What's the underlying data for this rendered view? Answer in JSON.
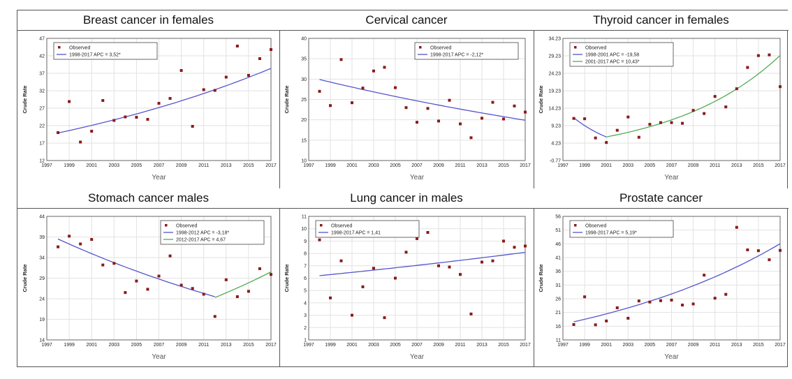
{
  "chart_data": [
    {
      "type": "scatter",
      "title": "Breast cancer in females",
      "xlabel": "Year",
      "ylabel": "Crude Rate",
      "xlim": [
        1997,
        2017
      ],
      "ylim": [
        12,
        47
      ],
      "xticks": [
        "1997",
        "1999",
        "2001",
        "2003",
        "2005",
        "2007",
        "2009",
        "2011",
        "2013",
        "2015",
        "2017"
      ],
      "yticks": [
        "12",
        "17",
        "22",
        "27",
        "32",
        "37",
        "42",
        "47"
      ],
      "legend": {
        "observed": "Observed",
        "lines": [
          "1998-2017 APC = 3,52*"
        ]
      },
      "legend_position": "top-left",
      "observed": {
        "x": [
          1998,
          1999,
          2000,
          2001,
          2002,
          2003,
          2004,
          2005,
          2006,
          2007,
          2008,
          2009,
          2010,
          2011,
          2012,
          2013,
          2014,
          2015,
          2016,
          2017
        ],
        "y": [
          20.0,
          28.9,
          17.3,
          20.4,
          29.2,
          23.5,
          24.5,
          24.4,
          23.8,
          28.4,
          29.8,
          37.8,
          21.8,
          32.3,
          32.1,
          35.9,
          44.8,
          36.4,
          41.2,
          43.8
        ]
      },
      "fits": [
        {
          "name": "1998-2017 APC = 3,52*",
          "color": "#5555cc",
          "x": [
            1998,
            2017
          ],
          "y_start": 19.9,
          "apc": 3.52
        }
      ]
    },
    {
      "type": "scatter",
      "title": "Cervical cancer",
      "xlabel": "Year",
      "ylabel": "Crude Rate",
      "xlim": [
        1997,
        2017
      ],
      "ylim": [
        10,
        40
      ],
      "xticks": [
        "1997",
        "1999",
        "2001",
        "2003",
        "2005",
        "2007",
        "2009",
        "2011",
        "2013",
        "2015",
        "2017"
      ],
      "yticks": [
        "10",
        "15",
        "20",
        "25",
        "30",
        "35",
        "40"
      ],
      "legend": {
        "observed": "Observed",
        "lines": [
          "1998-2017 APC = -2,12*"
        ]
      },
      "legend_position": "top-right",
      "observed": {
        "x": [
          1998,
          1999,
          2000,
          2001,
          2002,
          2003,
          2004,
          2005,
          2006,
          2007,
          2008,
          2009,
          2010,
          2011,
          2012,
          2013,
          2014,
          2015,
          2016,
          2017
        ],
        "y": [
          27.0,
          23.5,
          34.8,
          24.2,
          27.8,
          32.0,
          32.9,
          27.9,
          23.0,
          19.4,
          22.8,
          19.7,
          24.8,
          19.0,
          15.6,
          20.4,
          24.3,
          20.2,
          23.4,
          21.9
        ]
      },
      "fits": [
        {
          "name": "1998-2017 APC = -2,12*",
          "color": "#5555cc",
          "x": [
            1998,
            2017
          ],
          "y_start": 29.9,
          "apc": -2.12
        }
      ]
    },
    {
      "type": "scatter",
      "title": "Thyroid cancer in females",
      "xlabel": "Year",
      "ylabel": "Crude Rate",
      "xlim": [
        1997,
        2017
      ],
      "ylim": [
        -0.77,
        34.23
      ],
      "xticks": [
        "1997",
        "1999",
        "2001",
        "2003",
        "2005",
        "2007",
        "2009",
        "2011",
        "2013",
        "2015",
        "2017"
      ],
      "yticks": [
        "-0.77",
        "4.23",
        "9.23",
        "14.23",
        "19.23",
        "24.23",
        "29.23",
        "34.23"
      ],
      "legend": {
        "observed": "Observed",
        "lines": [
          "1998-2001 APC = -19,58",
          "2001-2017 APC = 10,43*"
        ]
      },
      "legend_position": "top-left",
      "observed": {
        "x": [
          1998,
          1999,
          2000,
          2001,
          2002,
          2003,
          2004,
          2005,
          2006,
          2007,
          2008,
          2009,
          2010,
          2011,
          2012,
          2013,
          2014,
          2015,
          2016,
          2017
        ],
        "y": [
          11.3,
          11.2,
          5.7,
          4.4,
          7.9,
          11.7,
          5.9,
          9.6,
          10.1,
          10.1,
          9.9,
          13.6,
          12.7,
          17.6,
          14.6,
          19.8,
          25.9,
          29.3,
          29.5,
          20.4
        ]
      },
      "fits": [
        {
          "name": "1998-2001 APC = -19,58",
          "color": "#5555cc",
          "x": [
            1998,
            2001
          ],
          "y_start": 11.5,
          "apc": -19.58
        },
        {
          "name": "2001-2017 APC = 10,43*",
          "color": "#55aa55",
          "x": [
            2001,
            2017
          ],
          "y_start": 6.0,
          "apc": 10.43
        }
      ]
    },
    {
      "type": "scatter",
      "title": "Stomach cancer males",
      "xlabel": "Year",
      "ylabel": "Crude Rate",
      "xlim": [
        1997,
        2017
      ],
      "ylim": [
        14,
        44
      ],
      "xticks": [
        "1997",
        "1999",
        "2001",
        "2003",
        "2005",
        "2007",
        "2009",
        "2011",
        "2013",
        "2015",
        "2017"
      ],
      "yticks": [
        "14",
        "19",
        "24",
        "29",
        "34",
        "39",
        "44"
      ],
      "legend": {
        "observed": "Observed",
        "lines": [
          "1998-2012 APC = -3,18*",
          "2012-2017 APC = 4,67"
        ]
      },
      "legend_position": "top-right",
      "observed": {
        "x": [
          1998,
          1999,
          2000,
          2001,
          2002,
          2003,
          2004,
          2005,
          2006,
          2007,
          2008,
          2009,
          2010,
          2011,
          2012,
          2013,
          2014,
          2015,
          2016,
          2017
        ],
        "y": [
          36.6,
          39.2,
          37.3,
          38.4,
          32.2,
          32.6,
          25.5,
          28.3,
          26.3,
          29.5,
          34.4,
          27.3,
          26.5,
          25.1,
          19.7,
          28.6,
          24.5,
          25.8,
          31.3,
          29.9
        ]
      },
      "fits": [
        {
          "name": "1998-2012 APC = -3,18*",
          "color": "#5555cc",
          "x": [
            1998,
            2012
          ],
          "y_start": 38.5,
          "apc": -3.18
        },
        {
          "name": "2012-2017 APC = 4,67",
          "color": "#55aa55",
          "x": [
            2012,
            2017
          ],
          "y_start": 24.3,
          "apc": 4.67
        }
      ]
    },
    {
      "type": "scatter",
      "title": "Lung cancer in males",
      "xlabel": "Year",
      "ylabel": "Crude Rate",
      "xlim": [
        1997,
        2017
      ],
      "ylim": [
        1,
        11
      ],
      "xticks": [
        "1997",
        "1999",
        "2001",
        "2003",
        "2005",
        "2007",
        "2009",
        "2011",
        "2013",
        "2015",
        "2017"
      ],
      "yticks": [
        "1",
        "2",
        "3",
        "4",
        "5",
        "6",
        "7",
        "8",
        "9",
        "10",
        "11"
      ],
      "legend": {
        "observed": "Observed",
        "lines": [
          "1998-2017 APC = 1,41"
        ]
      },
      "legend_position": "top-left",
      "observed": {
        "x": [
          1998,
          1999,
          2000,
          2001,
          2002,
          2003,
          2004,
          2005,
          2006,
          2007,
          2008,
          2009,
          2010,
          2011,
          2012,
          2013,
          2014,
          2015,
          2016,
          2017
        ],
        "y": [
          9.1,
          4.4,
          7.4,
          3.0,
          5.3,
          6.8,
          2.8,
          6.0,
          8.1,
          9.2,
          9.7,
          7.0,
          6.9,
          6.3,
          3.1,
          7.3,
          7.4,
          9.0,
          8.5,
          8.6
        ]
      },
      "fits": [
        {
          "name": "1998-2017 APC = 1,41",
          "color": "#5555cc",
          "x": [
            1998,
            2017
          ],
          "y_start": 6.2,
          "apc": 1.41
        }
      ]
    },
    {
      "type": "scatter",
      "title": "Prostate cancer",
      "xlabel": "Year",
      "ylabel": "Crude Rate",
      "xlim": [
        1997,
        2017
      ],
      "ylim": [
        11,
        56
      ],
      "xticks": [
        "1997",
        "1999",
        "2001",
        "2003",
        "2005",
        "2007",
        "2009",
        "2011",
        "2013",
        "2015",
        "2017"
      ],
      "yticks": [
        "11",
        "16",
        "21",
        "26",
        "31",
        "36",
        "41",
        "46",
        "51",
        "56"
      ],
      "legend": {
        "observed": "Observed",
        "lines": [
          "1998-2017 APC = 5,19*"
        ]
      },
      "legend_position": "top-left",
      "observed": {
        "x": [
          1998,
          1999,
          2000,
          2001,
          2002,
          2003,
          2004,
          2005,
          2006,
          2007,
          2008,
          2009,
          2010,
          2011,
          2012,
          2013,
          2014,
          2015,
          2016,
          2017
        ],
        "y": [
          16.6,
          26.7,
          16.5,
          17.9,
          22.7,
          18.9,
          25.2,
          24.8,
          25.3,
          25.5,
          23.7,
          24.1,
          34.6,
          26.2,
          27.6,
          52.0,
          43.8,
          43.5,
          40.2,
          43.6
        ]
      },
      "fits": [
        {
          "name": "1998-2017 APC = 5,19*",
          "color": "#5555cc",
          "x": [
            1998,
            2017
          ],
          "y_start": 17.6,
          "apc": 5.19
        }
      ]
    }
  ]
}
